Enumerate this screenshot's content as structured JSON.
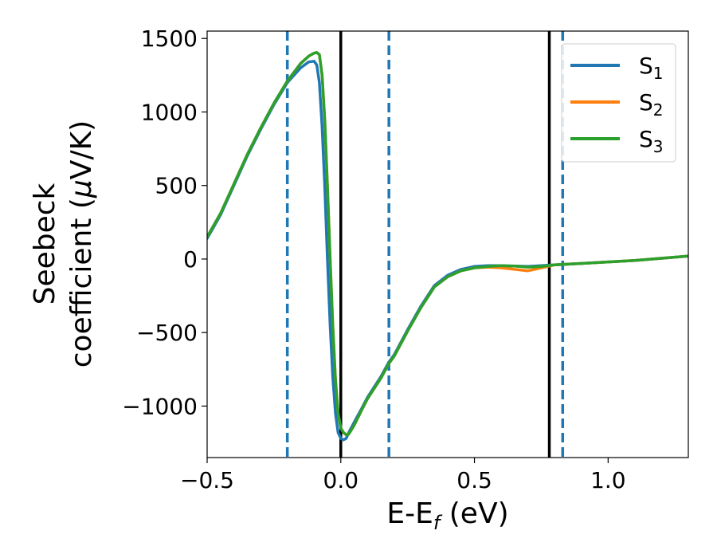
{
  "chart_data": {
    "type": "line",
    "xlabel": {
      "main": "E-E",
      "sub": "f",
      "tail": " (eV)"
    },
    "ylabel": {
      "line1": "Seebeck",
      "line2_pre": "coefficient  (",
      "line2_mu": "μ",
      "line2_post": "V/K)"
    },
    "xlim": [
      -0.5,
      1.3
    ],
    "ylim": [
      -1350,
      1550
    ],
    "xticks": [
      {
        "value": -0.5,
        "label": "−0.5"
      },
      {
        "value": 0.0,
        "label": "0.0"
      },
      {
        "value": 0.5,
        "label": "0.5"
      },
      {
        "value": 1.0,
        "label": "1.0"
      }
    ],
    "yticks": [
      {
        "value": 1500,
        "label": "1500"
      },
      {
        "value": 1000,
        "label": "1000"
      },
      {
        "value": 500,
        "label": "500"
      },
      {
        "value": 0,
        "label": "0"
      },
      {
        "value": -500,
        "label": "−500"
      },
      {
        "value": -1000,
        "label": "−1000"
      }
    ],
    "vlines": [
      {
        "x": -0.2,
        "style": "dashed",
        "color": "#1f77b4"
      },
      {
        "x": 0.0,
        "style": "solid",
        "color": "#000000"
      },
      {
        "x": 0.18,
        "style": "dashed",
        "color": "#1f77b4"
      },
      {
        "x": 0.78,
        "style": "solid",
        "color": "#000000"
      },
      {
        "x": 0.83,
        "style": "dashed",
        "color": "#1f77b4"
      }
    ],
    "legend": {
      "position": "upper right"
    },
    "series": [
      {
        "name": "S",
        "name_sub": "1",
        "color": "#1f77b4",
        "x": [
          -0.5,
          -0.45,
          -0.4,
          -0.35,
          -0.3,
          -0.25,
          -0.2,
          -0.15,
          -0.12,
          -0.1,
          -0.09,
          -0.08,
          -0.07,
          -0.06,
          -0.05,
          -0.04,
          -0.03,
          -0.02,
          -0.01,
          0.0,
          0.01,
          0.02,
          0.03,
          0.05,
          0.08,
          0.1,
          0.15,
          0.18,
          0.2,
          0.25,
          0.3,
          0.35,
          0.4,
          0.45,
          0.5,
          0.55,
          0.6,
          0.65,
          0.7,
          0.75,
          0.8,
          0.85,
          0.9,
          1.0,
          1.1,
          1.2,
          1.3
        ],
        "y": [
          140,
          300,
          500,
          700,
          880,
          1050,
          1200,
          1300,
          1340,
          1345,
          1320,
          1200,
          900,
          500,
          0,
          -450,
          -800,
          -1050,
          -1180,
          -1220,
          -1230,
          -1220,
          -1180,
          -1110,
          -1010,
          -940,
          -800,
          -700,
          -650,
          -480,
          -320,
          -180,
          -110,
          -70,
          -50,
          -45,
          -45,
          -48,
          -50,
          -45,
          -40,
          -35,
          -30,
          -20,
          -10,
          5,
          20
        ]
      },
      {
        "name": "S",
        "name_sub": "2",
        "color": "#ff7f0e",
        "x": [
          -0.5,
          -0.45,
          -0.4,
          -0.35,
          -0.3,
          -0.25,
          -0.2,
          -0.15,
          -0.12,
          -0.1,
          -0.09,
          -0.08,
          -0.07,
          -0.06,
          -0.05,
          -0.04,
          -0.03,
          -0.02,
          -0.01,
          0.0,
          0.01,
          0.02,
          0.03,
          0.05,
          0.08,
          0.1,
          0.15,
          0.18,
          0.2,
          0.25,
          0.3,
          0.35,
          0.4,
          0.45,
          0.5,
          0.55,
          0.6,
          0.65,
          0.7,
          0.75,
          0.8,
          0.85,
          0.9,
          1.0,
          1.1,
          1.2,
          1.3
        ],
        "y": [
          150,
          310,
          510,
          710,
          890,
          1060,
          1210,
          1330,
          1380,
          1400,
          1405,
          1390,
          1250,
          950,
          500,
          0,
          -450,
          -820,
          -1050,
          -1150,
          -1180,
          -1195,
          -1190,
          -1130,
          -1020,
          -950,
          -810,
          -710,
          -660,
          -490,
          -330,
          -190,
          -120,
          -80,
          -60,
          -55,
          -60,
          -70,
          -80,
          -60,
          -40,
          -35,
          -30,
          -20,
          -10,
          5,
          20
        ]
      },
      {
        "name": "S",
        "name_sub": "3",
        "color": "#2ca02c",
        "x": [
          -0.5,
          -0.45,
          -0.4,
          -0.35,
          -0.3,
          -0.25,
          -0.2,
          -0.15,
          -0.12,
          -0.1,
          -0.09,
          -0.08,
          -0.07,
          -0.06,
          -0.05,
          -0.04,
          -0.03,
          -0.02,
          -0.01,
          0.0,
          0.01,
          0.02,
          0.03,
          0.05,
          0.08,
          0.1,
          0.15,
          0.18,
          0.2,
          0.25,
          0.3,
          0.35,
          0.4,
          0.45,
          0.5,
          0.55,
          0.6,
          0.65,
          0.7,
          0.75,
          0.8,
          0.85,
          0.9,
          1.0,
          1.1,
          1.2,
          1.3
        ],
        "y": [
          150,
          310,
          510,
          710,
          890,
          1060,
          1210,
          1330,
          1380,
          1400,
          1405,
          1390,
          1250,
          950,
          500,
          0,
          -450,
          -820,
          -1050,
          -1150,
          -1180,
          -1195,
          -1190,
          -1130,
          -1020,
          -950,
          -810,
          -710,
          -660,
          -490,
          -330,
          -190,
          -120,
          -80,
          -60,
          -50,
          -45,
          -48,
          -55,
          -50,
          -40,
          -35,
          -30,
          -20,
          -10,
          5,
          20
        ]
      }
    ]
  }
}
